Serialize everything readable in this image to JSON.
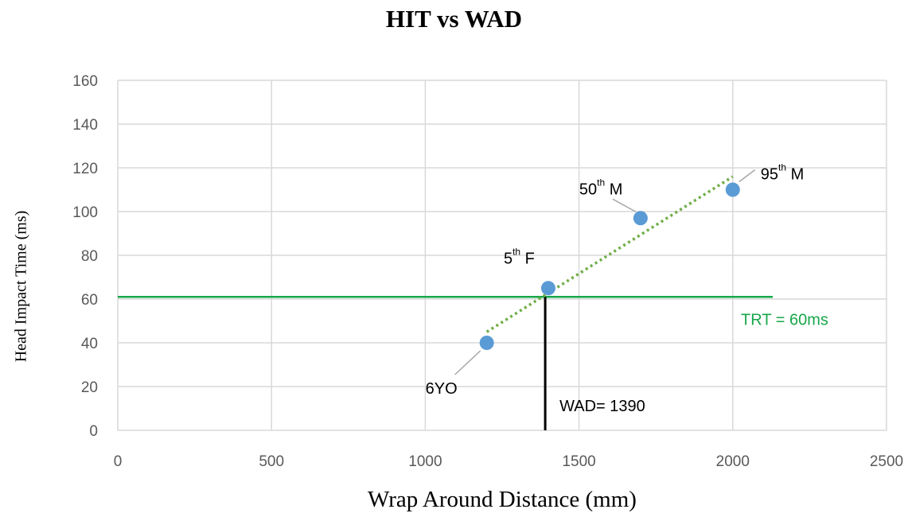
{
  "chart_data": {
    "type": "scatter",
    "title": "HIT vs WAD",
    "xlabel": "Wrap Around Distance (mm)",
    "ylabel": "Head Impact Time (ms)",
    "xlim": [
      0,
      2500
    ],
    "ylim": [
      0,
      160
    ],
    "x_ticks": [
      "0",
      "500",
      "1000",
      "1500",
      "2000",
      "2500"
    ],
    "y_ticks": [
      "0",
      "20",
      "40",
      "60",
      "80",
      "100",
      "120",
      "140",
      "160"
    ],
    "grid": true,
    "series": [
      {
        "points": [
          {
            "x": 1200,
            "y": 40,
            "label": "6YO"
          },
          {
            "x": 1400,
            "y": 65,
            "label": "5th F"
          },
          {
            "x": 1700,
            "y": 97,
            "label": "50th M"
          },
          {
            "x": 2000,
            "y": 110,
            "label": "95th M"
          }
        ],
        "color": "#5b9bd5"
      }
    ],
    "trendline": {
      "x": [
        1200,
        2000
      ],
      "y": [
        45,
        116
      ],
      "color": "#70ad47",
      "style": "dotted"
    },
    "reference_lines": [
      {
        "orientation": "horizontal",
        "y": 61,
        "x_range": [
          0,
          2130
        ],
        "label_text": "TRT = 60ms",
        "color": "#17a74a"
      },
      {
        "orientation": "vertical",
        "x": 1390,
        "y_range": [
          0,
          61
        ],
        "label_text": "WAD= 1390",
        "color": "#000000"
      }
    ],
    "annotations": [
      {
        "base": "6YO",
        "sup": "",
        "tail": "",
        "target_index": 0
      },
      {
        "base": "5",
        "sup": "th",
        "tail": " F",
        "target_index": 1
      },
      {
        "base": "50",
        "sup": "th",
        "tail": " M",
        "target_index": 2
      },
      {
        "base": "95",
        "sup": "th",
        "tail": " M",
        "target_index": 3
      }
    ]
  }
}
